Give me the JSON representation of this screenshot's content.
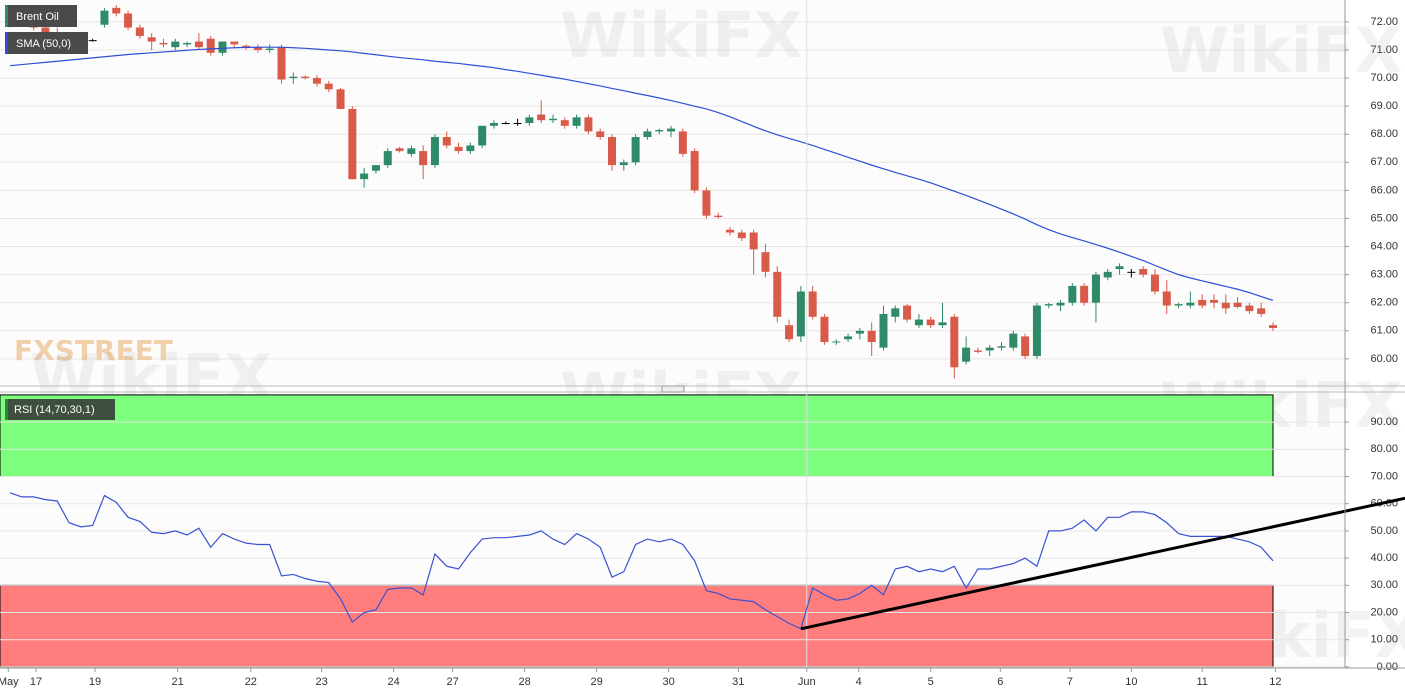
{
  "chart_data": [
    {
      "type": "candlestick",
      "watermark": "FXSTREET",
      "watermark2": "WikiFX",
      "xlim": [
        -0.85,
        113.1
      ],
      "ylim": [
        59.07,
        72.78
      ],
      "yticks": [
        {
          "value": 60,
          "label": "60.00"
        },
        {
          "value": 61,
          "label": "61.00"
        },
        {
          "value": 62,
          "label": "62.00"
        },
        {
          "value": 63,
          "label": "63.00"
        },
        {
          "value": 64,
          "label": "64.00"
        },
        {
          "value": 65,
          "label": "65.00"
        },
        {
          "value": 66,
          "label": "66.00"
        },
        {
          "value": 67,
          "label": "67.00"
        },
        {
          "value": 68,
          "label": "68.00"
        },
        {
          "value": 69,
          "label": "69.00"
        },
        {
          "value": 70,
          "label": "70.00"
        },
        {
          "value": 71,
          "label": "71.00"
        },
        {
          "value": 72,
          "label": "72.00"
        }
      ],
      "grid": true,
      "series": [
        {
          "name": "Brent Oil",
          "up_color": "#2f8a68",
          "down_color": "#d85a48",
          "flat_color": "#000000",
          "ohlc": [
            [
              72.0,
              72.3,
              71.8,
              72.1
            ],
            [
              72.1,
              72.3,
              71.9,
              72.0
            ],
            [
              72.0,
              72.2,
              71.7,
              71.8
            ],
            [
              71.8,
              72.0,
              71.5,
              71.6
            ],
            [
              71.6,
              71.8,
              71.3,
              71.5
            ],
            [
              71.5,
              71.6,
              71.1,
              71.2
            ],
            [
              71.2,
              71.5,
              71.0,
              71.35
            ],
            [
              71.35,
              71.4,
              71.3,
              71.35
            ],
            [
              71.9,
              72.5,
              71.8,
              72.4
            ],
            [
              72.5,
              72.6,
              72.2,
              72.3
            ],
            [
              72.3,
              72.4,
              71.7,
              71.8
            ],
            [
              71.8,
              71.9,
              71.4,
              71.5
            ],
            [
              71.45,
              71.6,
              71.0,
              71.3
            ],
            [
              71.25,
              71.4,
              71.1,
              71.2
            ],
            [
              71.1,
              71.4,
              71.0,
              71.3
            ],
            [
              71.2,
              71.3,
              71.1,
              71.25
            ],
            [
              71.3,
              71.6,
              71.0,
              71.1
            ],
            [
              71.4,
              71.5,
              70.8,
              70.9
            ],
            [
              70.9,
              71.3,
              70.8,
              71.3
            ],
            [
              71.3,
              71.3,
              71.1,
              71.2
            ],
            [
              71.15,
              71.2,
              71.0,
              71.1
            ],
            [
              71.1,
              71.2,
              70.9,
              71.0
            ],
            [
              71.0,
              71.2,
              70.9,
              71.05
            ],
            [
              71.1,
              71.2,
              69.8,
              69.95
            ],
            [
              70.0,
              70.2,
              69.8,
              70.05
            ],
            [
              70.05,
              70.1,
              69.95,
              70.0
            ],
            [
              70.0,
              70.1,
              69.7,
              69.8
            ],
            [
              69.8,
              69.9,
              69.5,
              69.6
            ],
            [
              69.6,
              69.65,
              68.9,
              68.9
            ],
            [
              68.9,
              69.0,
              66.4,
              66.4
            ],
            [
              66.4,
              66.8,
              66.1,
              66.6
            ],
            [
              66.7,
              66.9,
              66.6,
              66.9
            ],
            [
              66.9,
              67.5,
              66.8,
              67.4
            ],
            [
              67.5,
              67.55,
              67.35,
              67.4
            ],
            [
              67.3,
              67.6,
              67.2,
              67.5
            ],
            [
              67.4,
              67.6,
              66.4,
              66.9
            ],
            [
              66.9,
              68.0,
              66.8,
              67.9
            ],
            [
              67.9,
              68.1,
              67.5,
              67.6
            ],
            [
              67.55,
              67.7,
              67.3,
              67.4
            ],
            [
              67.4,
              67.7,
              67.3,
              67.6
            ],
            [
              67.6,
              68.3,
              67.5,
              68.3
            ],
            [
              68.3,
              68.5,
              68.2,
              68.4
            ],
            [
              68.4,
              68.45,
              68.35,
              68.4
            ],
            [
              68.4,
              68.55,
              68.3,
              68.4
            ],
            [
              68.4,
              68.7,
              68.3,
              68.6
            ],
            [
              68.7,
              69.2,
              68.4,
              68.5
            ],
            [
              68.5,
              68.7,
              68.4,
              68.55
            ],
            [
              68.5,
              68.6,
              68.2,
              68.3
            ],
            [
              68.3,
              68.7,
              68.2,
              68.6
            ],
            [
              68.6,
              68.7,
              68.0,
              68.1
            ],
            [
              68.1,
              68.2,
              67.8,
              67.9
            ],
            [
              67.9,
              68.0,
              66.7,
              66.9
            ],
            [
              66.9,
              67.1,
              66.7,
              67.0
            ],
            [
              67.0,
              68.0,
              66.9,
              67.9
            ],
            [
              67.9,
              68.2,
              67.8,
              68.1
            ],
            [
              68.1,
              68.2,
              68.0,
              68.15
            ],
            [
              68.1,
              68.3,
              67.9,
              68.2
            ],
            [
              68.1,
              68.2,
              67.2,
              67.3
            ],
            [
              67.4,
              67.5,
              65.9,
              66.0
            ],
            [
              66.0,
              66.1,
              65.0,
              65.1
            ],
            [
              65.1,
              65.2,
              65.0,
              65.05
            ],
            [
              64.6,
              64.7,
              64.4,
              64.5
            ],
            [
              64.5,
              64.6,
              64.2,
              64.3
            ],
            [
              64.5,
              64.6,
              63.0,
              63.9
            ],
            [
              63.8,
              64.1,
              62.9,
              63.1
            ],
            [
              63.1,
              63.3,
              61.3,
              61.5
            ],
            [
              61.2,
              61.4,
              60.6,
              60.7
            ],
            [
              60.8,
              62.6,
              60.6,
              62.4
            ],
            [
              62.4,
              62.6,
              61.4,
              61.5
            ],
            [
              61.5,
              61.6,
              60.5,
              60.6
            ],
            [
              60.6,
              60.7,
              60.5,
              60.62
            ],
            [
              60.7,
              60.9,
              60.6,
              60.8
            ],
            [
              60.9,
              61.1,
              60.7,
              61.0
            ],
            [
              61.0,
              61.3,
              60.1,
              60.6
            ],
            [
              60.4,
              61.9,
              60.3,
              61.6
            ],
            [
              61.5,
              61.9,
              61.3,
              61.8
            ],
            [
              61.9,
              61.95,
              61.3,
              61.4
            ],
            [
              61.2,
              61.6,
              61.1,
              61.4
            ],
            [
              61.4,
              61.5,
              61.1,
              61.2
            ],
            [
              61.2,
              62.0,
              61.1,
              61.3
            ],
            [
              61.5,
              61.6,
              59.3,
              59.7
            ],
            [
              59.9,
              60.8,
              59.8,
              60.4
            ],
            [
              60.3,
              60.4,
              60.2,
              60.25
            ],
            [
              60.3,
              60.5,
              60.1,
              60.4
            ],
            [
              60.4,
              60.6,
              60.3,
              60.45
            ],
            [
              60.4,
              61.0,
              60.3,
              60.9
            ],
            [
              60.8,
              60.9,
              60.0,
              60.1
            ],
            [
              60.1,
              62.0,
              60.0,
              61.9
            ],
            [
              61.9,
              62.0,
              61.8,
              61.95
            ],
            [
              61.9,
              62.1,
              61.7,
              62.0
            ],
            [
              62.0,
              62.7,
              61.9,
              62.6
            ],
            [
              62.6,
              62.7,
              61.9,
              62.0
            ],
            [
              62.0,
              63.1,
              61.3,
              63.0
            ],
            [
              62.9,
              63.2,
              62.8,
              63.1
            ],
            [
              63.2,
              63.4,
              63.0,
              63.3
            ],
            [
              63.1,
              63.2,
              62.9,
              63.1
            ],
            [
              63.2,
              63.3,
              62.9,
              63.0
            ],
            [
              63.0,
              63.2,
              62.3,
              62.4
            ],
            [
              62.4,
              62.8,
              61.6,
              61.9
            ],
            [
              61.9,
              62.0,
              61.8,
              61.95
            ],
            [
              61.9,
              62.4,
              61.8,
              62.0
            ],
            [
              62.1,
              62.3,
              61.8,
              61.9
            ],
            [
              62.1,
              62.3,
              61.8,
              62.0
            ],
            [
              62.0,
              62.3,
              61.6,
              61.8
            ],
            [
              62.0,
              62.2,
              61.8,
              61.85
            ],
            [
              61.9,
              62.0,
              61.6,
              61.7
            ],
            [
              61.8,
              62.0,
              61.5,
              61.6
            ],
            [
              61.2,
              61.3,
              61.0,
              61.1
            ]
          ]
        },
        {
          "name": "SMA (50,0)",
          "color": "#2d4fd6",
          "values": [
            70.44,
            70.48,
            70.52,
            70.56,
            70.6,
            70.64,
            70.68,
            70.72,
            70.76,
            70.8,
            70.84,
            70.87,
            70.9,
            70.93,
            70.96,
            70.99,
            71.02,
            71.04,
            71.06,
            71.08,
            71.09,
            71.1,
            71.1,
            71.1,
            71.08,
            71.06,
            71.03,
            71.0,
            70.97,
            70.93,
            70.88,
            70.83,
            70.78,
            70.73,
            70.69,
            70.65,
            70.6,
            70.56,
            70.52,
            70.47,
            70.42,
            70.37,
            70.3,
            70.24,
            70.17,
            70.1,
            70.03,
            69.96,
            69.88,
            69.8,
            69.72,
            69.63,
            69.55,
            69.46,
            69.38,
            69.29,
            69.2,
            69.1,
            69.0,
            68.9,
            68.77,
            68.62,
            68.45,
            68.28,
            68.12,
            67.98,
            67.85,
            67.73,
            67.6,
            67.46,
            67.32,
            67.18,
            67.04,
            66.9,
            66.77,
            66.64,
            66.52,
            66.4,
            66.27,
            66.12,
            65.97,
            65.82,
            65.66,
            65.5,
            65.33,
            65.16,
            64.98,
            64.78,
            64.6,
            64.45,
            64.32,
            64.2,
            64.07,
            63.94,
            63.8,
            63.65,
            63.5,
            63.33,
            63.16,
            63.0,
            62.88,
            62.78,
            62.68,
            62.58,
            62.48,
            62.36,
            62.22,
            62.08
          ]
        }
      ]
    },
    {
      "type": "line",
      "xlim": [
        -0.85,
        113.1
      ],
      "ylim": [
        -0.4,
        100.7
      ],
      "yticks": [
        {
          "value": 0,
          "label": "0.00"
        },
        {
          "value": 10,
          "label": "10.00"
        },
        {
          "value": 20,
          "label": "20.00"
        },
        {
          "value": 30,
          "label": "30.00"
        },
        {
          "value": 40,
          "label": "40.00"
        },
        {
          "value": 50,
          "label": "50.00"
        },
        {
          "value": 60,
          "label": "60.00"
        },
        {
          "value": 70,
          "label": "70.00"
        },
        {
          "value": 80,
          "label": "80.00"
        },
        {
          "value": 90,
          "label": "90.00"
        }
      ],
      "grid": true,
      "xticks": [
        {
          "value": -0.15,
          "label": "May"
        },
        {
          "value": 2.2,
          "label": "17"
        },
        {
          "value": 7.2,
          "label": "19"
        },
        {
          "value": 14.2,
          "label": "21"
        },
        {
          "value": 20.4,
          "label": "22"
        },
        {
          "value": 26.4,
          "label": "23"
        },
        {
          "value": 32.5,
          "label": "24"
        },
        {
          "value": 37.5,
          "label": "27"
        },
        {
          "value": 43.6,
          "label": "28"
        },
        {
          "value": 49.7,
          "label": "29"
        },
        {
          "value": 55.8,
          "label": "30"
        },
        {
          "value": 61.7,
          "label": "31"
        },
        {
          "value": 67.5,
          "label": "Jun"
        },
        {
          "value": 71.9,
          "label": "4"
        },
        {
          "value": 78,
          "label": "5"
        },
        {
          "value": 83.9,
          "label": "6"
        },
        {
          "value": 89.8,
          "label": "7"
        },
        {
          "value": 95,
          "label": "10"
        },
        {
          "value": 101,
          "label": "11"
        },
        {
          "value": 107.2,
          "label": "12"
        }
      ],
      "bands": [
        {
          "from": 70,
          "to": 100,
          "color": "#7dff7d"
        },
        {
          "from": 0,
          "to": 30,
          "color": "#ff7d7d"
        }
      ],
      "trendline": {
        "x": [
          67,
          118.2
        ],
        "y": [
          14,
          62
        ],
        "color": "#000000"
      },
      "series": [
        {
          "name": "RSI (14,70,30,1)",
          "color": "#3a52d0",
          "values": [
            64,
            62.5,
            62.5,
            61.5,
            61,
            53,
            51.5,
            52,
            63,
            60.5,
            55,
            53.5,
            49.5,
            49,
            50,
            48.5,
            51,
            44,
            49,
            47,
            45.5,
            45,
            45,
            33.5,
            34,
            32.5,
            31.5,
            31,
            25,
            16.5,
            20,
            21,
            28.5,
            29,
            29,
            26.5,
            41.5,
            37,
            36,
            42,
            47,
            47.5,
            47.5,
            48,
            48.5,
            50,
            47,
            45,
            49,
            47,
            44,
            33,
            35,
            45,
            47,
            46,
            47,
            45,
            39,
            28,
            27,
            25,
            24.5,
            24,
            21,
            18.5,
            16,
            14,
            29,
            26.5,
            24.5,
            25,
            27,
            30,
            26.5,
            36,
            37,
            35,
            36,
            35,
            37,
            29,
            36,
            36,
            37,
            38,
            40,
            37,
            50,
            50,
            51,
            54,
            50,
            55,
            55,
            57,
            57,
            56,
            53,
            49,
            48,
            48,
            48,
            48,
            47,
            46,
            44,
            39
          ]
        }
      ]
    }
  ]
}
